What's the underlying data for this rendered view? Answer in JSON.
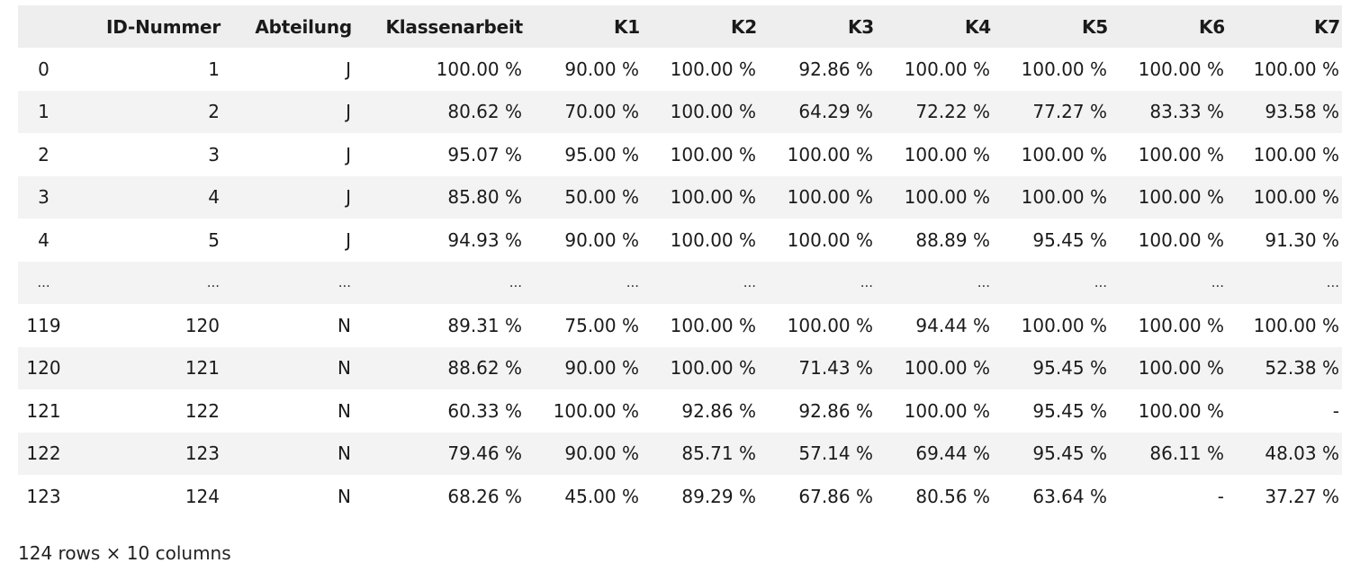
{
  "table": {
    "columns": [
      "",
      "ID-Nummer",
      "Abteilung",
      "Klassenarbeit",
      "K1",
      "K2",
      "K3",
      "K4",
      "K5",
      "K6",
      "K7"
    ],
    "rows": [
      [
        "0",
        "1",
        "J",
        "100.00 %",
        "90.00 %",
        "100.00 %",
        "92.86 %",
        "100.00 %",
        "100.00 %",
        "100.00 %",
        "100.00 %"
      ],
      [
        "1",
        "2",
        "J",
        "80.62 %",
        "70.00 %",
        "100.00 %",
        "64.29 %",
        "72.22 %",
        "77.27 %",
        "83.33 %",
        "93.58 %"
      ],
      [
        "2",
        "3",
        "J",
        "95.07 %",
        "95.00 %",
        "100.00 %",
        "100.00 %",
        "100.00 %",
        "100.00 %",
        "100.00 %",
        "100.00 %"
      ],
      [
        "3",
        "4",
        "J",
        "85.80 %",
        "50.00 %",
        "100.00 %",
        "100.00 %",
        "100.00 %",
        "100.00 %",
        "100.00 %",
        "100.00 %"
      ],
      [
        "4",
        "5",
        "J",
        "94.93 %",
        "90.00 %",
        "100.00 %",
        "100.00 %",
        "88.89 %",
        "95.45 %",
        "100.00 %",
        "91.30 %"
      ],
      [
        "...",
        "...",
        "...",
        "...",
        "...",
        "...",
        "...",
        "...",
        "...",
        "...",
        "..."
      ],
      [
        "119",
        "120",
        "N",
        "89.31 %",
        "75.00 %",
        "100.00 %",
        "100.00 %",
        "94.44 %",
        "100.00 %",
        "100.00 %",
        "100.00 %"
      ],
      [
        "120",
        "121",
        "N",
        "88.62 %",
        "90.00 %",
        "100.00 %",
        "71.43 %",
        "100.00 %",
        "95.45 %",
        "100.00 %",
        "52.38 %"
      ],
      [
        "121",
        "122",
        "N",
        "60.33 %",
        "100.00 %",
        "92.86 %",
        "92.86 %",
        "100.00 %",
        "95.45 %",
        "100.00 %",
        "-"
      ],
      [
        "122",
        "123",
        "N",
        "79.46 %",
        "90.00 %",
        "85.71 %",
        "57.14 %",
        "69.44 %",
        "95.45 %",
        "86.11 %",
        "48.03 %"
      ],
      [
        "123",
        "124",
        "N",
        "68.26 %",
        "45.00 %",
        "89.29 %",
        "67.86 %",
        "80.56 %",
        "63.64 %",
        "-",
        "37.27 %"
      ]
    ]
  },
  "footer": {
    "shape_text": "124 rows × 10 columns"
  },
  "colors": {
    "header_bg": "#eeeeee",
    "stripe_bg": "#f3f3f3",
    "row_bg": "#ffffff",
    "text": "#1a1a1a"
  }
}
